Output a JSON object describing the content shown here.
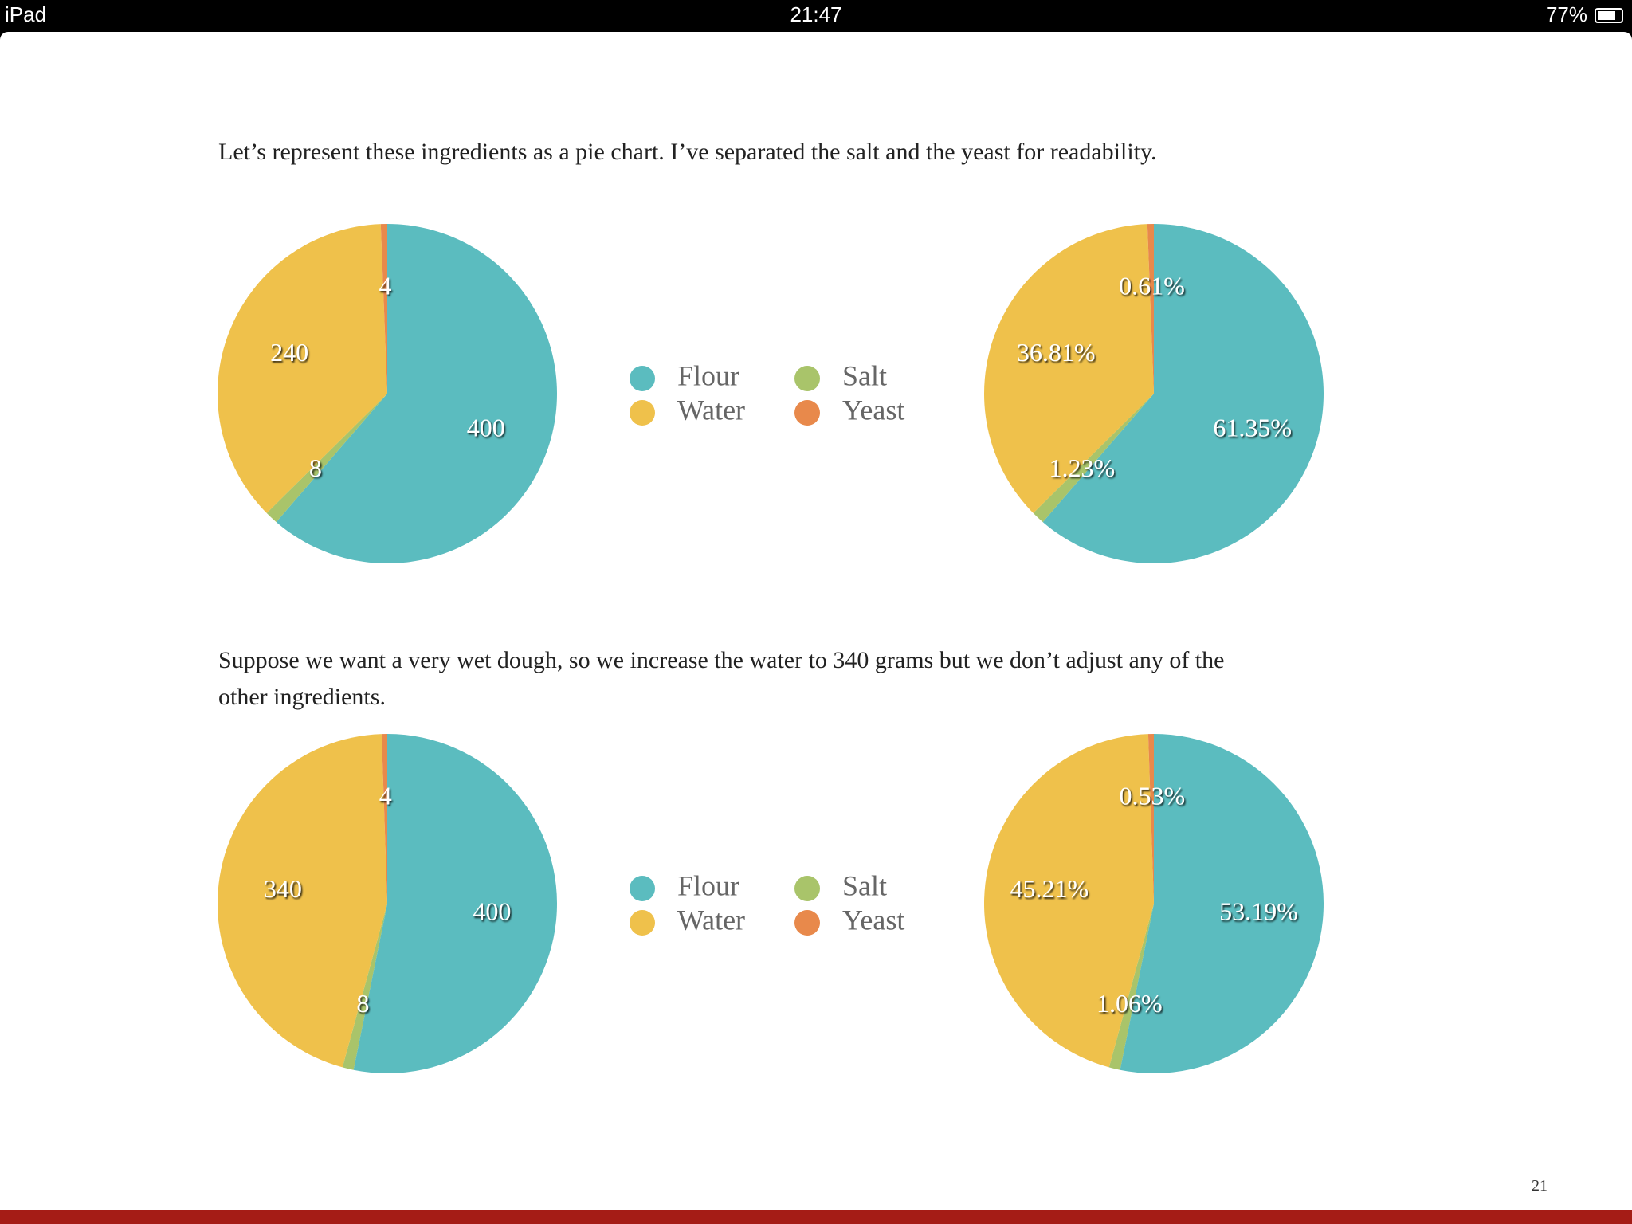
{
  "status_bar": {
    "device": "iPad",
    "time": "21:47",
    "battery": "77%"
  },
  "paragraphs": [
    [
      "Let’s represent these ingredients as a pie chart. I’ve separated the salt and the yeast for readability."
    ],
    [
      "Suppose we want a very wet dough, so we increase the water to 340 grams but we don’t adjust any of the",
      "other ingredients."
    ]
  ],
  "chart_data": [
    {
      "type": "pie",
      "categories": [
        "Flour",
        "Salt",
        "Water",
        "Yeast"
      ],
      "values": [
        400,
        8,
        240,
        4
      ],
      "colors": [
        "#5bbcbf",
        "#a9c46a",
        "#efc14b",
        "#e8894b"
      ]
    },
    {
      "type": "pie",
      "categories": [
        "Flour",
        "Salt",
        "Water",
        "Yeast"
      ],
      "values": [
        61.35,
        1.23,
        36.81,
        0.61
      ],
      "value_labels": [
        "61.35%",
        "1.23%",
        "36.81%",
        "0.61%"
      ],
      "colors": [
        "#5bbcbf",
        "#a9c46a",
        "#efc14b",
        "#e8894b"
      ]
    },
    {
      "type": "pie",
      "categories": [
        "Flour",
        "Salt",
        "Water",
        "Yeast"
      ],
      "values": [
        400,
        8,
        340,
        4
      ],
      "colors": [
        "#5bbcbf",
        "#a9c46a",
        "#efc14b",
        "#e8894b"
      ]
    },
    {
      "type": "pie",
      "categories": [
        "Flour",
        "Salt",
        "Water",
        "Yeast"
      ],
      "values": [
        53.19,
        1.06,
        45.21,
        0.53
      ],
      "value_labels": [
        "53.19%",
        "1.06%",
        "45.21%",
        "0.53%"
      ],
      "colors": [
        "#5bbcbf",
        "#a9c46a",
        "#efc14b",
        "#e8894b"
      ]
    }
  ],
  "page_number": "21"
}
